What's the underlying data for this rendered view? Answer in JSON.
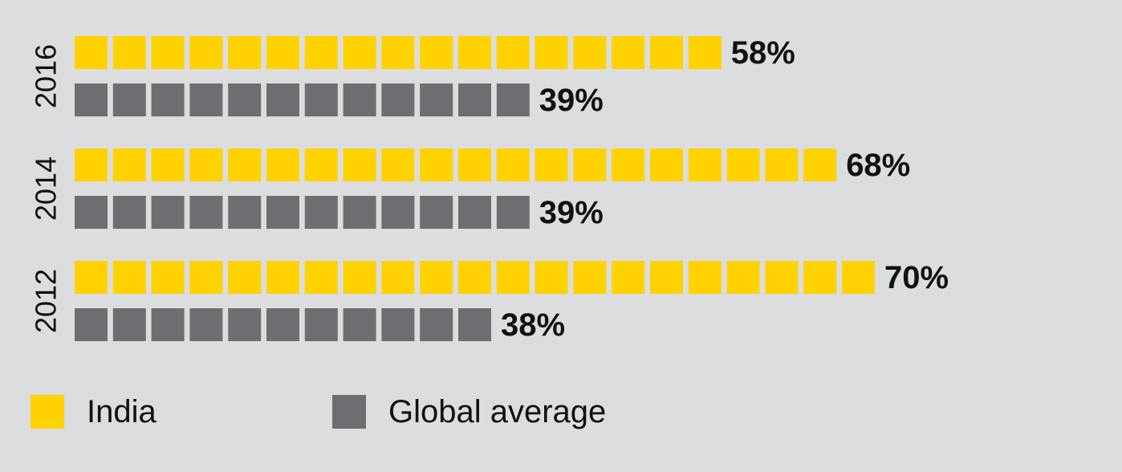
{
  "chart_data": {
    "type": "bar",
    "orientation": "horizontal",
    "categories": [
      "2016",
      "2014",
      "2012"
    ],
    "series": [
      {
        "name": "India",
        "values": [
          58,
          68,
          70
        ],
        "labels": [
          "58%",
          "68%",
          "70%"
        ],
        "color": "#ffd200"
      },
      {
        "name": "Global average",
        "values": [
          39,
          39,
          38
        ],
        "labels": [
          "39%",
          "39%",
          "38%"
        ],
        "color": "#6d6e71"
      }
    ],
    "unit": "%",
    "legend_position": "bottom-left"
  },
  "legend": {
    "india_label": "India",
    "global_label": "Global average"
  }
}
